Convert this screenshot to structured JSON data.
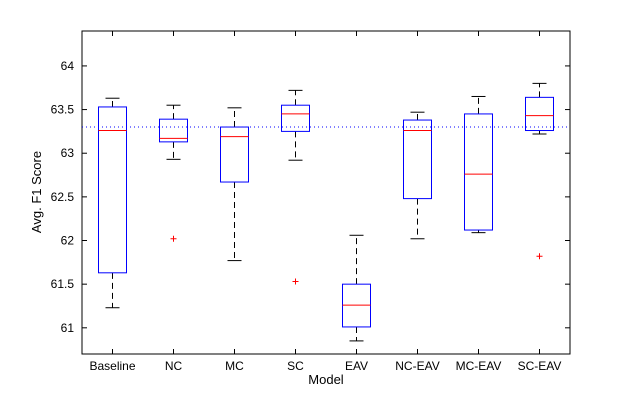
{
  "chart_data": {
    "type": "box",
    "title": "",
    "xlabel": "Model",
    "ylabel": "Avg. F1 Score",
    "ylim": [
      60.7,
      64.4
    ],
    "yticks": [
      61,
      61.5,
      62,
      62.5,
      63,
      63.5,
      64
    ],
    "ytick_labels": [
      "61",
      "61.5",
      "62",
      "62.5",
      "63",
      "63.5",
      "64"
    ],
    "categories": [
      "Baseline",
      "NC",
      "MC",
      "SC",
      "EAV",
      "NC-EAV",
      "MC-EAV",
      "SC-EAV"
    ],
    "reference_line": 63.3,
    "boxes": [
      {
        "name": "Baseline",
        "whisker_low": 61.23,
        "q1": 61.63,
        "median": 63.26,
        "q3": 63.53,
        "whisker_high": 63.63,
        "outliers": []
      },
      {
        "name": "NC",
        "whisker_low": 62.93,
        "q1": 63.13,
        "median": 63.17,
        "q3": 63.39,
        "whisker_high": 63.55,
        "outliers": [
          62.02
        ]
      },
      {
        "name": "MC",
        "whisker_low": 61.77,
        "q1": 62.67,
        "median": 63.19,
        "q3": 63.3,
        "whisker_high": 63.52,
        "outliers": []
      },
      {
        "name": "SC",
        "whisker_low": 62.92,
        "q1": 63.25,
        "median": 63.45,
        "q3": 63.55,
        "whisker_high": 63.72,
        "outliers": [
          61.53
        ]
      },
      {
        "name": "EAV",
        "whisker_low": 60.85,
        "q1": 61.01,
        "median": 61.26,
        "q3": 61.5,
        "whisker_high": 62.06,
        "outliers": []
      },
      {
        "name": "NC-EAV",
        "whisker_low": 62.02,
        "q1": 62.48,
        "median": 63.26,
        "q3": 63.38,
        "whisker_high": 63.47,
        "outliers": []
      },
      {
        "name": "MC-EAV",
        "whisker_low": 62.09,
        "q1": 62.12,
        "median": 62.76,
        "q3": 63.45,
        "whisker_high": 63.65,
        "outliers": []
      },
      {
        "name": "SC-EAV",
        "whisker_low": 63.22,
        "q1": 63.26,
        "median": 63.43,
        "q3": 63.64,
        "whisker_high": 63.8,
        "outliers": [
          61.82
        ]
      }
    ],
    "colors": {
      "box": "#0000ff",
      "median": "#ff0000",
      "whisker": "#000000",
      "outlier": "#ff0000",
      "reference": "#0000ff",
      "axes": "#000000"
    }
  }
}
